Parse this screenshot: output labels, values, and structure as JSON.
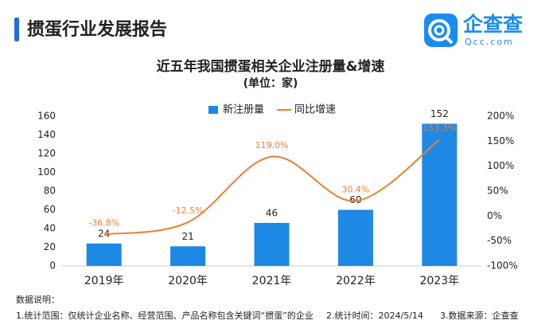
{
  "header": {
    "title": "掼蛋行业发展报告",
    "logo_text": "企查查",
    "logo_sub": "Qcc.com"
  },
  "chart_data": {
    "type": "bar",
    "title": "近五年我国掼蛋相关企业注册量&增速",
    "subtitle": "(单位：家)",
    "categories": [
      "2019年",
      "2020年",
      "2021年",
      "2022年",
      "2023年"
    ],
    "series": [
      {
        "name": "新注册量",
        "type": "bar",
        "color": "#1e88e5",
        "values": [
          24,
          21,
          46,
          60,
          152
        ]
      },
      {
        "name": "同比增速",
        "type": "line",
        "axis": "y2",
        "color": "#ef7d31",
        "values": [
          -36.8,
          -12.5,
          119.0,
          30.4,
          153.3
        ],
        "value_labels": [
          "-36.8%",
          "-12.5%",
          "119.0%",
          "30.4%",
          "153.3%"
        ]
      }
    ],
    "ylim": [
      0,
      160
    ],
    "yticks": [
      0,
      20,
      40,
      60,
      80,
      100,
      120,
      140,
      160
    ],
    "y2lim": [
      -100,
      200
    ],
    "y2ticks": [
      {
        "value": -100,
        "label": "-100%"
      },
      {
        "value": -50,
        "label": "-50%"
      },
      {
        "value": 0,
        "label": "0%"
      },
      {
        "value": 50,
        "label": "50%"
      },
      {
        "value": 100,
        "label": "100%"
      },
      {
        "value": 150,
        "label": "150%"
      },
      {
        "value": 200,
        "label": "200%"
      }
    ],
    "legend": "top"
  },
  "footer": {
    "heading": "数据说明：",
    "notes": [
      "1.统计范围：仅统计企业名称、经营范围、产品名称包含关键词“掼蛋”的企业",
      "2.统计时间：2024/5/14",
      "3.数据来源：企查查"
    ]
  }
}
